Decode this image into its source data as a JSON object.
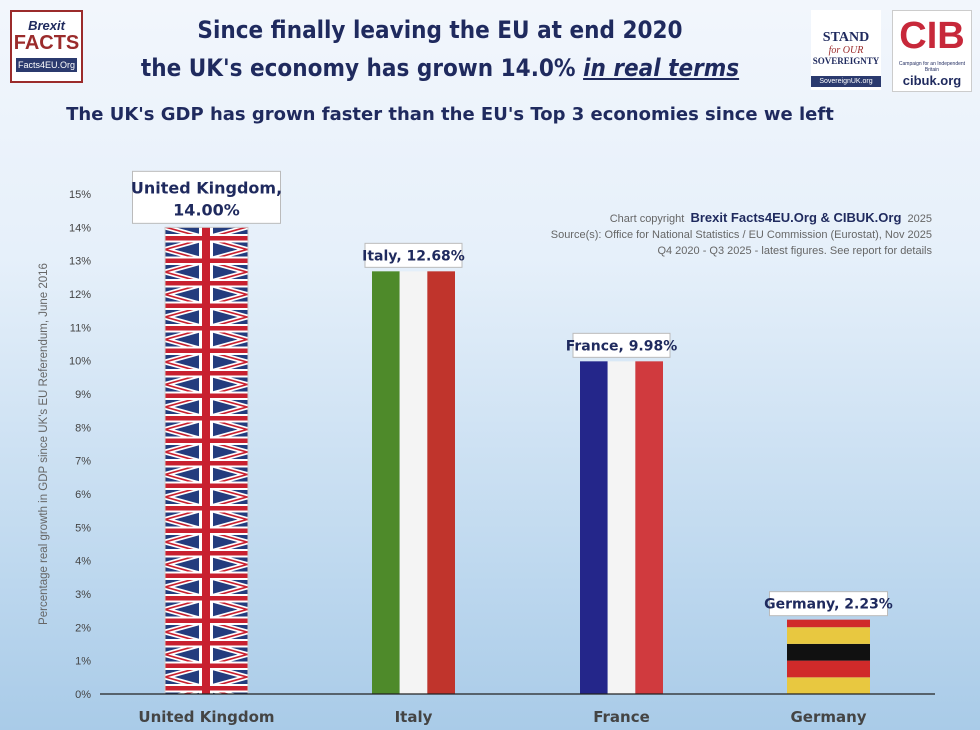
{
  "header": {
    "title_line1": "Since finally leaving the EU at end 2020",
    "title_line2_prefix": "the UK's economy has grown 14.0% ",
    "title_line2_emph": "in real terms",
    "subtitle": "The UK's GDP has grown faster than the EU's Top 3 economies since we left"
  },
  "logos": {
    "brexit_facts": {
      "brand": "Brexit",
      "name": "FACTS",
      "url": "Facts4EU.Org"
    },
    "stand": {
      "line1": "STAND",
      "line2": "for OUR",
      "line3": "SOVEREIGNTY",
      "url": "SovereignUK.org"
    },
    "cibuk": {
      "mark": "CIB",
      "tagline": "Campaign for an Independent Britain",
      "url": "cibuk.org"
    }
  },
  "credit": {
    "prefix": "Chart copyright",
    "owner": "Brexit Facts4EU.Org & CIBUK.Org",
    "year": "2025",
    "source": "Source(s): Office for National Statistics  / EU Commission (Eurostat), Nov 2025",
    "note": "Q4 2020 - Q3 2025 - latest figures. See report for details"
  },
  "chart_data": {
    "type": "bar",
    "categories": [
      "United Kingdom",
      "Italy",
      "France",
      "Germany"
    ],
    "values": [
      14.0,
      12.68,
      9.98,
      2.23
    ],
    "data_labels": [
      "United Kingdom, 14.00%",
      "Italy, 12.68%",
      "France, 9.98%",
      "Germany, 2.23%"
    ],
    "ylabel": "Percentage real growth in GDP since UK's EU Referendum, June 2016",
    "ylim": [
      0,
      15
    ],
    "yticks": [
      "0%",
      "1%",
      "2%",
      "3%",
      "4%",
      "5%",
      "6%",
      "7%",
      "8%",
      "9%",
      "10%",
      "11%",
      "12%",
      "13%",
      "14%",
      "15%"
    ],
    "fills": [
      "uk-flag",
      "italy-flag",
      "france-flag",
      "germany-flag"
    ],
    "colors": {
      "italy": [
        "#4e8a2a",
        "#f4f4f4",
        "#c0342c"
      ],
      "france": [
        "#24268a",
        "#f4f4f4",
        "#d03a3e"
      ],
      "germany": [
        "#111111",
        "#d02a2a",
        "#e8c840"
      ]
    },
    "grid": false
  }
}
